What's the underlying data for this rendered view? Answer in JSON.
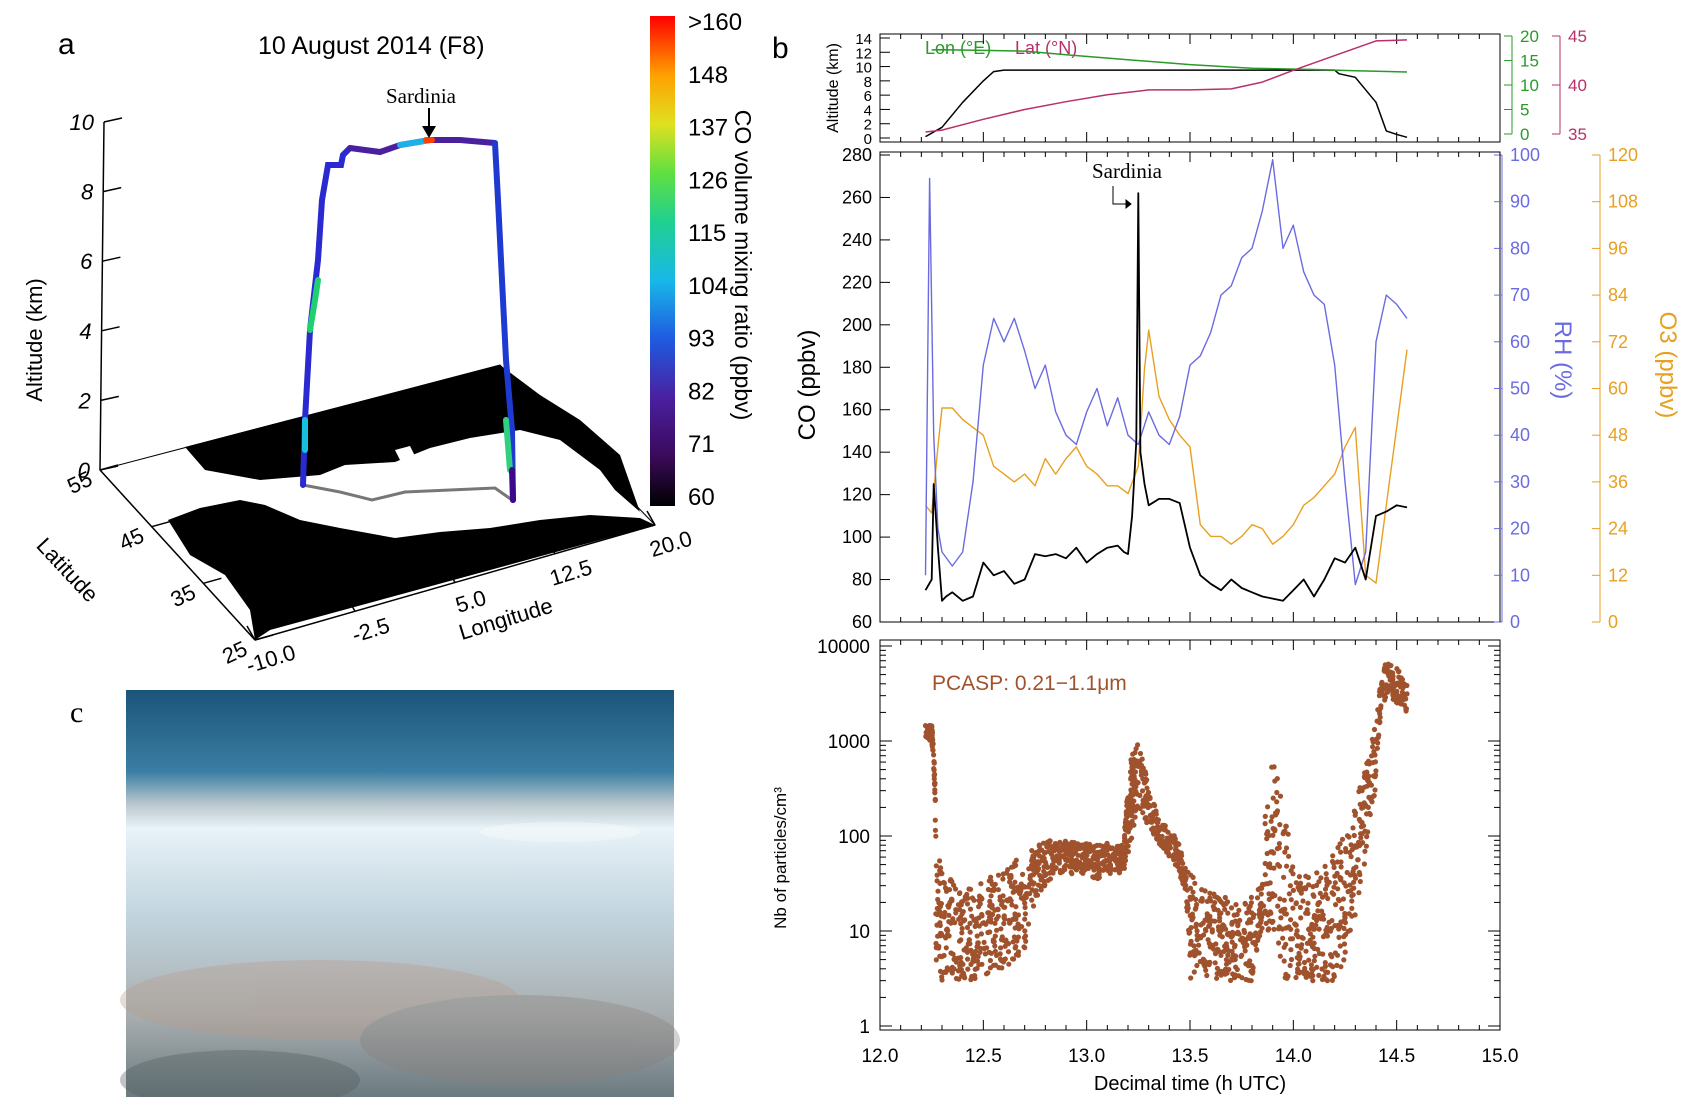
{
  "figure": {
    "panel_a": {
      "letter": "a",
      "title": "10 August 2014 (F8)",
      "annotation": "Sardinia",
      "z_axis": {
        "label": "Altitude (km)",
        "ticks": [
          "0",
          "2",
          "4",
          "6",
          "8",
          "10"
        ]
      },
      "lat_axis": {
        "label": "Latitude",
        "ticks": [
          "25",
          "35",
          "45",
          "55"
        ]
      },
      "lon_axis": {
        "label": "Longitude",
        "ticks": [
          "-10.0",
          "-2.5",
          "5.0",
          "12.5",
          "20.0"
        ]
      },
      "colorbar": {
        "label": "CO volume mixing ratio (ppbv)",
        "ticks": [
          ">160",
          "148",
          "137",
          "126",
          "115",
          "104",
          "93",
          "82",
          "71",
          "60"
        ],
        "min": 60,
        "max": 160
      }
    },
    "panel_b": {
      "letter": "b"
    },
    "panel_c": {
      "letter": "c"
    }
  },
  "chart_data": [
    {
      "type": "line",
      "panel": "b-top",
      "ylabel": "Altitude (km)",
      "ylim": [
        0,
        14
      ],
      "yticks": [
        "0",
        "2",
        "4",
        "6",
        "8",
        "10",
        "12",
        "14"
      ],
      "right_axis_1": {
        "ticks": [
          "0",
          "5",
          "10",
          "15",
          "20"
        ],
        "color": "#2a9a2a"
      },
      "right_axis_2": {
        "ticks": [
          "35",
          "40",
          "45"
        ],
        "color": "#b8306a"
      },
      "legend": [
        "Lon (°E)",
        "Lat (°N)"
      ],
      "xlim": [
        12.0,
        15.0
      ],
      "series": [
        {
          "name": "Altitude",
          "color": "#000000",
          "axis": "alt",
          "x": [
            12.22,
            12.3,
            12.4,
            12.5,
            12.55,
            12.6,
            14.0,
            14.2,
            14.22,
            14.3,
            14.4,
            14.45,
            14.5,
            14.55
          ],
          "y": [
            0.2,
            1.5,
            5,
            8,
            9.3,
            9.5,
            9.5,
            9.5,
            9.0,
            8.5,
            5,
            1.0,
            0.5,
            0.1
          ]
        },
        {
          "name": "Lon (°E)",
          "color": "#2a9a2a",
          "axis": "lon",
          "x": [
            12.25,
            12.3,
            12.5,
            12.7,
            12.9,
            13.2,
            13.5,
            13.8,
            14.1,
            14.3,
            14.55
          ],
          "y": [
            -1.0,
            -0.9,
            -1.2,
            -1.5,
            -3,
            -5,
            -7,
            -8.5,
            -9,
            -9.5,
            -10
          ]
        },
        {
          "name": "Lat (°N)",
          "color": "#b8306a",
          "axis": "lat",
          "x": [
            12.22,
            12.3,
            12.5,
            12.7,
            12.9,
            13.1,
            13.3,
            13.5,
            13.7,
            13.85,
            14.0,
            14.2,
            14.4,
            14.55
          ],
          "y": [
            35.2,
            35.4,
            36.5,
            37.5,
            38.3,
            39.0,
            39.5,
            39.5,
            39.6,
            40.3,
            41.5,
            43.0,
            44.5,
            44.6
          ]
        }
      ]
    },
    {
      "type": "line",
      "panel": "b-middle",
      "annotation": "Sardinia",
      "ylabel": "CO (ppbv)",
      "ylim": [
        60,
        280
      ],
      "yticks": [
        "60",
        "80",
        "100",
        "120",
        "140",
        "160",
        "180",
        "200",
        "220",
        "240",
        "260",
        "280"
      ],
      "right_axis_1": {
        "label": "RH (%)",
        "ylim": [
          0,
          100
        ],
        "ticks": [
          "0",
          "10",
          "20",
          "30",
          "40",
          "50",
          "60",
          "70",
          "80",
          "90",
          "100"
        ],
        "color": "#6b6be0"
      },
      "right_axis_2": {
        "label": "O3 (ppbv)",
        "ylim": [
          0,
          120
        ],
        "ticks": [
          "0",
          "12",
          "24",
          "36",
          "48",
          "60",
          "72",
          "84",
          "96",
          "108",
          "120"
        ],
        "color": "#e8a020"
      },
      "xlim": [
        12.0,
        15.0
      ],
      "series": [
        {
          "name": "CO",
          "color": "#000000",
          "axis": "co",
          "x": [
            12.22,
            12.25,
            12.26,
            12.28,
            12.3,
            12.32,
            12.35,
            12.4,
            12.45,
            12.5,
            12.55,
            12.6,
            12.65,
            12.7,
            12.75,
            12.8,
            12.85,
            12.9,
            12.95,
            13.0,
            13.05,
            13.1,
            13.15,
            13.18,
            13.2,
            13.22,
            13.24,
            13.25,
            13.26,
            13.28,
            13.3,
            13.35,
            13.4,
            13.45,
            13.5,
            13.55,
            13.6,
            13.65,
            13.7,
            13.75,
            13.8,
            13.85,
            13.9,
            13.95,
            14.0,
            14.05,
            14.1,
            14.15,
            14.2,
            14.25,
            14.3,
            14.35,
            14.4,
            14.45,
            14.5,
            14.55
          ],
          "y": [
            75,
            80,
            125,
            95,
            70,
            72,
            74,
            70,
            72,
            88,
            82,
            84,
            78,
            80,
            92,
            91,
            92,
            90,
            95,
            88,
            92,
            95,
            96,
            93,
            92,
            110,
            145,
            262,
            140,
            125,
            115,
            118,
            118,
            116,
            95,
            82,
            78,
            75,
            80,
            76,
            74,
            72,
            71,
            70,
            75,
            80,
            72,
            80,
            90,
            88,
            95,
            80,
            110,
            112,
            115,
            114
          ]
        },
        {
          "name": "RH",
          "color": "#6b6be0",
          "axis": "rh",
          "x": [
            12.22,
            12.24,
            12.26,
            12.28,
            12.3,
            12.35,
            12.4,
            12.45,
            12.5,
            12.55,
            12.6,
            12.65,
            12.7,
            12.75,
            12.8,
            12.85,
            12.9,
            12.95,
            13.0,
            13.05,
            13.1,
            13.15,
            13.2,
            13.25,
            13.3,
            13.35,
            13.4,
            13.45,
            13.5,
            13.55,
            13.6,
            13.65,
            13.7,
            13.75,
            13.8,
            13.85,
            13.9,
            13.95,
            14.0,
            14.05,
            14.1,
            14.15,
            14.2,
            14.25,
            14.3,
            14.35,
            14.4,
            14.45,
            14.5,
            14.55
          ],
          "y": [
            10,
            95,
            40,
            20,
            15,
            12,
            15,
            30,
            55,
            65,
            60,
            65,
            58,
            50,
            55,
            45,
            40,
            38,
            45,
            50,
            42,
            48,
            40,
            38,
            45,
            40,
            38,
            44,
            55,
            57,
            62,
            70,
            72,
            78,
            80,
            88,
            99,
            80,
            85,
            75,
            70,
            68,
            55,
            30,
            8,
            15,
            60,
            70,
            68,
            65
          ]
        },
        {
          "name": "O3",
          "color": "#e8a020",
          "axis": "o3",
          "x": [
            12.22,
            12.25,
            12.28,
            12.3,
            12.35,
            12.4,
            12.45,
            12.5,
            12.55,
            12.6,
            12.65,
            12.7,
            12.75,
            12.8,
            12.85,
            12.9,
            12.95,
            13.0,
            13.05,
            13.1,
            13.15,
            13.2,
            13.25,
            13.28,
            13.3,
            13.35,
            13.4,
            13.45,
            13.5,
            13.55,
            13.6,
            13.65,
            13.7,
            13.75,
            13.8,
            13.85,
            13.9,
            13.95,
            14.0,
            14.05,
            14.1,
            14.15,
            14.2,
            14.25,
            14.3,
            14.35,
            14.4,
            14.45,
            14.5,
            14.55
          ],
          "y": [
            30,
            28,
            45,
            55,
            55,
            52,
            50,
            48,
            40,
            38,
            36,
            38,
            35,
            42,
            38,
            42,
            45,
            40,
            38,
            35,
            35,
            33,
            40,
            65,
            75,
            58,
            52,
            48,
            45,
            25,
            22,
            22,
            20,
            22,
            25,
            24,
            20,
            22,
            25,
            30,
            32,
            35,
            38,
            45,
            50,
            12,
            10,
            30,
            50,
            70
          ]
        }
      ]
    },
    {
      "type": "scatter",
      "panel": "b-bottom",
      "legend_label": "PCASP: 0.21−1.1μm",
      "xlabel": "Decimal time (h UTC)",
      "ylabel": "Nb of particles/cm³",
      "yscale": "log",
      "ylim": [
        1,
        10000
      ],
      "yticks": [
        "1",
        "10",
        "100",
        "1000",
        "10000"
      ],
      "xlim": [
        12.0,
        15.0
      ],
      "xticks": [
        "12.0",
        "12.5",
        "13.0",
        "13.5",
        "14.0",
        "14.5",
        "15.0"
      ],
      "color": "#a0522d",
      "envelope_x": [
        12.22,
        12.25,
        12.27,
        12.3,
        12.35,
        12.4,
        12.45,
        12.5,
        12.55,
        12.6,
        12.65,
        12.7,
        12.75,
        12.8,
        12.85,
        12.9,
        12.95,
        13.0,
        13.05,
        13.1,
        13.15,
        13.18,
        13.2,
        13.22,
        13.25,
        13.3,
        13.35,
        13.4,
        13.45,
        13.5,
        13.55,
        13.6,
        13.65,
        13.7,
        13.75,
        13.8,
        13.85,
        13.9,
        13.95,
        14.0,
        14.05,
        14.1,
        14.15,
        14.2,
        14.25,
        14.3,
        14.35,
        14.4,
        14.45,
        14.5,
        14.55
      ],
      "envelope_hi": [
        1500,
        1500,
        100,
        40,
        35,
        30,
        30,
        35,
        40,
        40,
        60,
        60,
        80,
        90,
        90,
        90,
        85,
        85,
        80,
        85,
        80,
        80,
        300,
        800,
        1000,
        300,
        150,
        120,
        80,
        40,
        30,
        25,
        25,
        20,
        20,
        25,
        30,
        600,
        200,
        40,
        40,
        45,
        50,
        70,
        100,
        200,
        500,
        1500,
        7000,
        6000,
        4000
      ],
      "envelope_lo": [
        1000,
        1000,
        5,
        3,
        3,
        3,
        3,
        3,
        4,
        4,
        5,
        6,
        20,
        30,
        40,
        40,
        40,
        40,
        35,
        40,
        40,
        40,
        60,
        100,
        200,
        120,
        80,
        60,
        40,
        3,
        3,
        3,
        3,
        3,
        3,
        3,
        10,
        10,
        3,
        3,
        3,
        3,
        3,
        3,
        5,
        10,
        50,
        300,
        3000,
        2500,
        2000
      ]
    }
  ]
}
